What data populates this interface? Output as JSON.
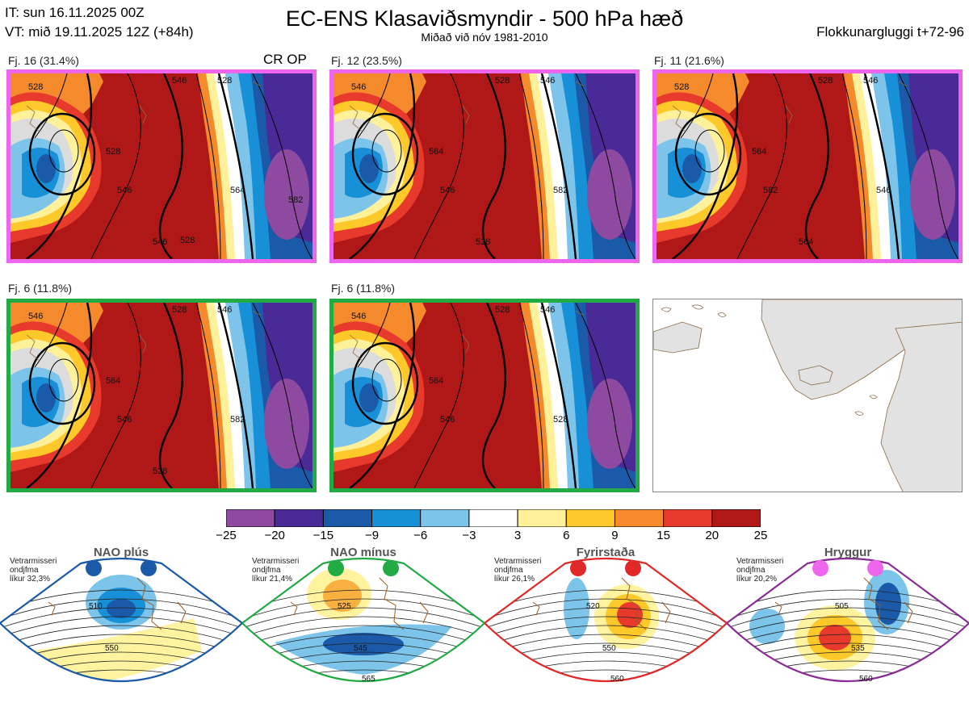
{
  "header": {
    "it_line": "IT: sun 16.11.2025 00Z",
    "vt_line": "VT: mið 19.11.2025 12Z  (+84h)",
    "title": "EC-ENS Klasaviðsmyndir - 500 hPa hæð",
    "subtitle": "Miðað við nóv 1981-2010",
    "window": "Flokkunargluggi t+72-96",
    "tag": "CR OP"
  },
  "panels": [
    {
      "label": "Fj. 16 (31.4%)",
      "regime": "Hryggur",
      "frame_color": "#ee66ee",
      "contour_labels": [
        "528",
        "546",
        "528",
        "528",
        "546",
        "564",
        "546",
        "582",
        "528"
      ]
    },
    {
      "label": "Fj. 12 (23.5%)",
      "regime": "Hryggur",
      "frame_color": "#ee66ee",
      "contour_labels": [
        "546",
        "528",
        "546",
        "564",
        "546",
        "582",
        "528"
      ]
    },
    {
      "label": "Fj. 11 (21.6%)",
      "regime": "Hryggur",
      "frame_color": "#ee66ee",
      "contour_labels": [
        "528",
        "528",
        "546",
        "564",
        "582",
        "546",
        "564"
      ]
    },
    {
      "label": "Fj. 6 (11.8%)",
      "regime": "NAO mínus",
      "frame_color": "#22aa44",
      "contour_labels": [
        "546",
        "528",
        "546",
        "564",
        "546",
        "582",
        "528"
      ]
    },
    {
      "label": "Fj. 6 (11.8%)",
      "regime": "NAO mínus",
      "frame_color": "#22aa44",
      "contour_labels": [
        "546",
        "528",
        "546",
        "564",
        "546",
        "528"
      ]
    }
  ],
  "colorbar": {
    "unit_note": "",
    "colors": [
      "#8e4aa0",
      "#4a2a96",
      "#1a5aa8",
      "#1890d8",
      "#7cc4ea",
      "#ffffff",
      "#fff09a",
      "#fdc82a",
      "#f48a2c",
      "#e83a2c",
      "#b01818"
    ],
    "ticks": [
      "−25",
      "−20",
      "−15",
      "−9",
      "−6",
      "−3",
      "3",
      "6",
      "9",
      "15",
      "20",
      "25"
    ]
  },
  "regimes": [
    {
      "name": "NAO plús",
      "dot_color": "#1a5aa8",
      "frame_color": "#1a5aa8",
      "info_lines": [
        "Vetrarmisseri",
        "ondjfma",
        "líkur 32,3%"
      ],
      "contours": [
        "510",
        "550"
      ]
    },
    {
      "name": "NAO mínus",
      "dot_color": "#22aa44",
      "frame_color": "#22aa44",
      "info_lines": [
        "Vetrarmisseri",
        "ondjfma",
        "líkur 21,4%"
      ],
      "contours": [
        "525",
        "545",
        "565"
      ]
    },
    {
      "name": "Fyrirstaða",
      "dot_color": "#e02828",
      "frame_color": "#e02828",
      "info_lines": [
        "Vetrarmisseri",
        "ondjfma",
        "líkur 26,1%"
      ],
      "contours": [
        "520",
        "550",
        "560"
      ]
    },
    {
      "name": "Hryggur",
      "dot_color": "#ee66ee",
      "frame_color": "#8a2a96",
      "info_lines": [
        "Vetrarmisseri",
        "ondjfma",
        "líkur 20,2%"
      ],
      "contours": [
        "505",
        "535",
        "560"
      ]
    }
  ]
}
